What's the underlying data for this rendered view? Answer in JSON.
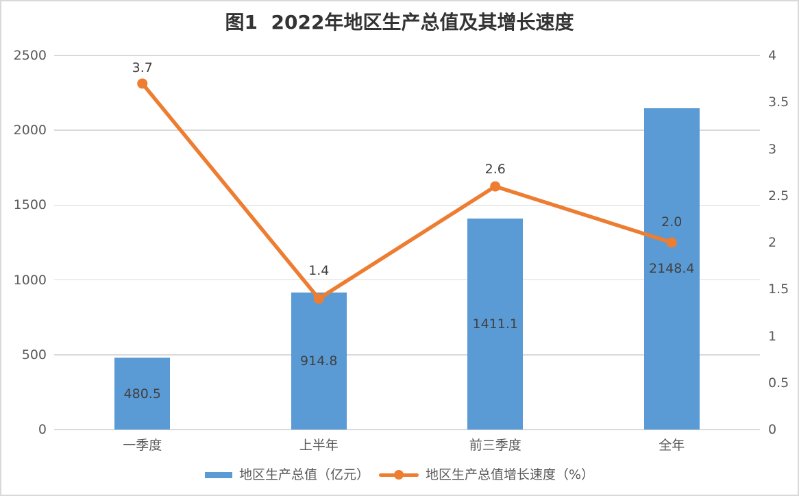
{
  "title": "图1  2022年地区生产总值及其增长速度",
  "colors": {
    "bar": "#5B9BD5",
    "line": "#ED7D31",
    "grid": "#D9D9D9",
    "border": "#D9D9D9",
    "tick_text": "#595959",
    "data_label_text": "#404040",
    "title_text": "#333333"
  },
  "chart_data": {
    "type": "bar",
    "subtype": "combo-bar-line",
    "title": "图1  2022年地区生产总值及其增长速度",
    "categories": [
      "一季度",
      "上半年",
      "前三季度",
      "全年"
    ],
    "series": [
      {
        "name": "地区生产总值（亿元）",
        "type": "bar",
        "axis": "left",
        "color": "#5B9BD5",
        "values": [
          480.5,
          914.8,
          1411.1,
          2148.4
        ],
        "labels": [
          "480.5",
          "914.8",
          "1411.1",
          "2148.4"
        ]
      },
      {
        "name": "地区生产总值增长速度（%）",
        "type": "line",
        "axis": "right",
        "color": "#ED7D31",
        "values": [
          3.7,
          1.4,
          2.6,
          2.0
        ],
        "labels": [
          "3.7",
          "1.4",
          "2.6",
          "2.0"
        ]
      }
    ],
    "left_axis": {
      "min": 0,
      "max": 2500,
      "ticks": [
        "0",
        "500",
        "1000",
        "1500",
        "2000",
        "2500"
      ]
    },
    "right_axis": {
      "min": 0,
      "max": 4,
      "ticks": [
        "0",
        "0.5",
        "1",
        "1.5",
        "2",
        "2.5",
        "3",
        "3.5",
        "4"
      ]
    },
    "grid": true,
    "legend_position": "bottom",
    "xlabel": "",
    "ylabel_left": "",
    "ylabel_right": ""
  }
}
